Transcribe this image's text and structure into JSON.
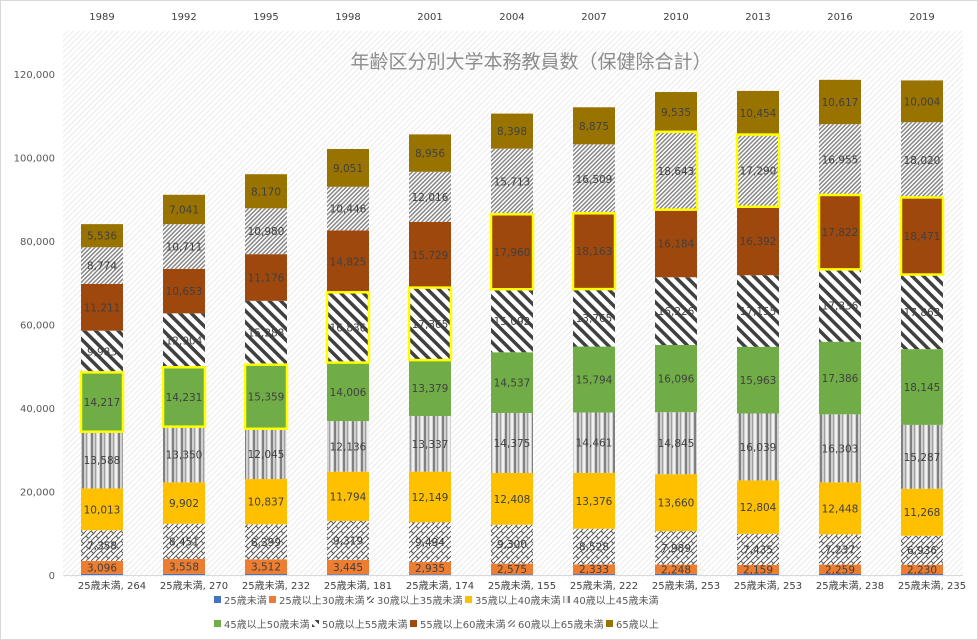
{
  "chart_data": {
    "type": "bar",
    "stacked": true,
    "title": "年齢区分別大学本務教員数（保健除合計）",
    "categories": [
      "1989",
      "1992",
      "1995",
      "1998",
      "2001",
      "2004",
      "2007",
      "2010",
      "2013",
      "2016",
      "2019"
    ],
    "ylim": [
      0,
      120000
    ],
    "yticks": [
      "0",
      "20,000",
      "40,000",
      "60,000",
      "80,000",
      "100,000",
      "120,000"
    ],
    "legend_position": "bottom",
    "series": [
      {
        "name": "25歳未満",
        "color": "#4472C4",
        "pattern": "solid",
        "values": [
          264,
          270,
          232,
          181,
          174,
          155,
          222,
          253,
          253,
          238,
          235
        ]
      },
      {
        "name": "25歳以上30歳未満",
        "color": "#ED7D31",
        "pattern": "solid",
        "values": [
          3096,
          3558,
          3512,
          3445,
          2935,
          2575,
          2333,
          2248,
          2159,
          2259,
          2230
        ]
      },
      {
        "name": "30歳以上35歳未満",
        "color": "#595959",
        "pattern": "cross",
        "values": [
          7358,
          8451,
          8399,
          9319,
          9494,
          9300,
          8528,
          7989,
          7435,
          7237,
          6936
        ]
      },
      {
        "name": "35歳以上40歳未満",
        "color": "#FFC000",
        "pattern": "solid",
        "values": [
          10013,
          9902,
          10837,
          11794,
          12149,
          12408,
          13376,
          13660,
          12804,
          12448,
          11268
        ]
      },
      {
        "name": "40歳以上45歳未満",
        "color": "#7f7f7f",
        "pattern": "vertical",
        "values": [
          13588,
          13350,
          12045,
          12136,
          13337,
          14375,
          14461,
          14845,
          16039,
          16303,
          15287
        ]
      },
      {
        "name": "45歳以上50歳未満",
        "color": "#70AD47",
        "pattern": "solid",
        "values": [
          14217,
          14231,
          15359,
          14006,
          13379,
          14537,
          15794,
          16096,
          15963,
          17386,
          18145
        ]
      },
      {
        "name": "50歳以上55歳未満",
        "color": "#404040",
        "pattern": "wide-diagonal",
        "values": [
          9983,
          12904,
          15288,
          16836,
          17365,
          15092,
          13765,
          16226,
          17155,
          17336,
          17863
        ]
      },
      {
        "name": "55歳以上60歳未満",
        "color": "#9E480E",
        "pattern": "solid",
        "values": [
          11211,
          10653,
          11176,
          14825,
          15729,
          17960,
          18163,
          16184,
          16392,
          17822,
          18471
        ]
      },
      {
        "name": "60歳以上65歳未満",
        "color": "#7f7f7f",
        "pattern": "fine-diagonal",
        "values": [
          8774,
          10711,
          10980,
          10446,
          12016,
          15713,
          16509,
          18643,
          17290,
          16955,
          18020
        ]
      },
      {
        "name": "65歳以上",
        "color": "#997300",
        "pattern": "solid",
        "values": [
          5536,
          7041,
          8170,
          9051,
          8956,
          8398,
          8875,
          9535,
          10454,
          10617,
          10004
        ]
      }
    ],
    "highlighted": [
      [
        0,
        5
      ],
      [
        1,
        5
      ],
      [
        2,
        5
      ],
      [
        3,
        6
      ],
      [
        4,
        6
      ],
      [
        5,
        7
      ],
      [
        6,
        7
      ],
      [
        7,
        8
      ],
      [
        8,
        8
      ],
      [
        9,
        7
      ],
      [
        10,
        7
      ]
    ],
    "highlight_color": "#FFFF00",
    "bottom_label_prefix": "25歳未満"
  }
}
